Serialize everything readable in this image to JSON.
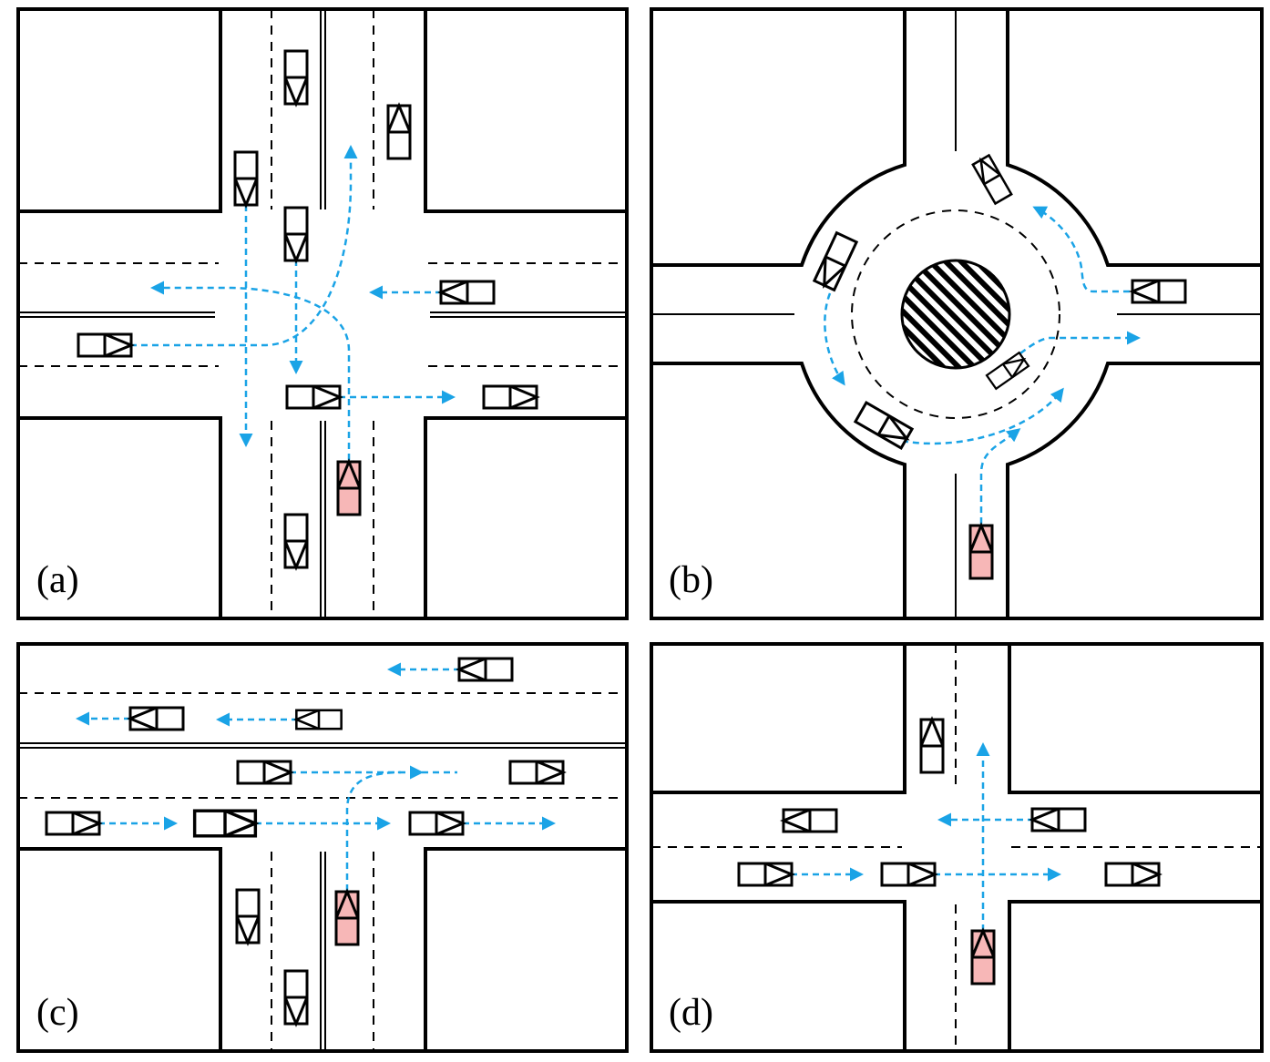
{
  "panels": [
    {
      "id": "a",
      "label": "(a)"
    },
    {
      "id": "b",
      "label": "(b)"
    },
    {
      "id": "c",
      "label": "(c)"
    },
    {
      "id": "d",
      "label": "(d)"
    }
  ],
  "colors": {
    "path": "#1aa3e6",
    "ego_vehicle": "#f7b7b7",
    "vehicle": "#ffffff",
    "line": "#000000"
  },
  "icons": {
    "vehicle": "car-icon",
    "path": "dashed-arrow-icon",
    "island": "hatched-island-icon"
  }
}
